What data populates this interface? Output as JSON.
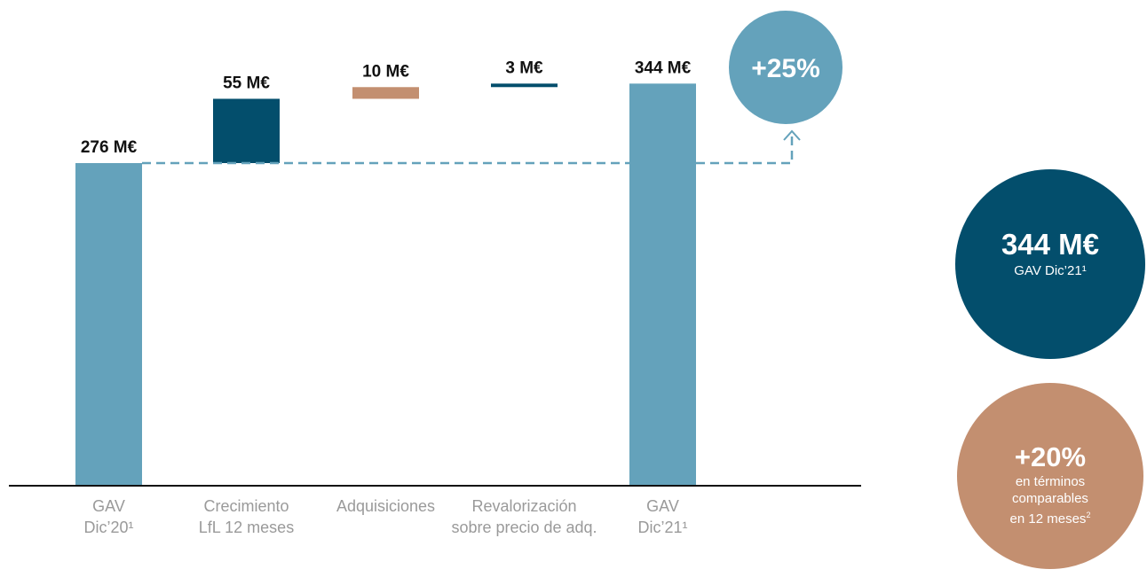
{
  "chart_data": {
    "type": "waterfall",
    "categories": [
      [
        "GAV",
        "Dic’20¹"
      ],
      [
        "Crecimiento",
        "LfL 12 meses"
      ],
      [
        "Adquisiciones"
      ],
      [
        "Revalorización",
        "sobre precio de adq."
      ],
      [
        "GAV",
        "Dic’21¹"
      ]
    ],
    "values": [
      276,
      55,
      10,
      3,
      344
    ],
    "kinds": [
      "total",
      "delta",
      "delta",
      "delta",
      "total"
    ],
    "labels": [
      "276 M€",
      "55 M€",
      "10 M€",
      "3 M€",
      "344 M€"
    ],
    "colors": [
      "#64a2bb",
      "#034e6c",
      "#c38f70",
      "#034e6c",
      "#64a2bb"
    ],
    "change_label": "+25%",
    "ylim": [
      0,
      400
    ]
  },
  "callouts": {
    "gav": {
      "value": "344 M€",
      "text": "GAV Dic’21¹",
      "color": "#034e6c"
    },
    "lfl": {
      "value": "+20%",
      "line1": "en términos",
      "line2": "comparables",
      "line3": "en 12 meses",
      "sup": "2",
      "color": "#c38f70"
    }
  }
}
